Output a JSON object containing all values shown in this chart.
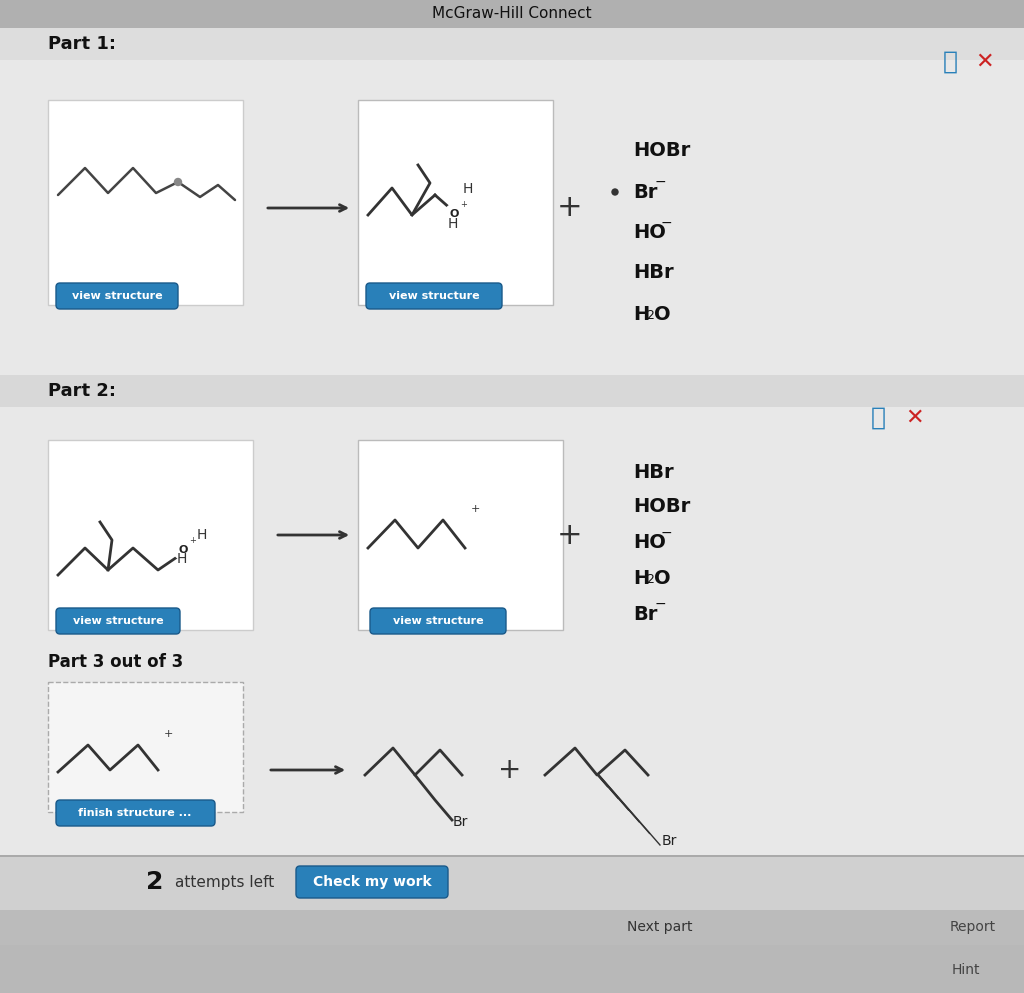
{
  "title": "McGraw-Hill Connect",
  "header_bg": "#b0b0b0",
  "content_bg": "#e8e8e8",
  "white_bg": "#ffffff",
  "blue_btn": "#2980b9",
  "part1_label": "Part 1:",
  "part2_label": "Part 2:",
  "part3_label": "Part 3 out of 3",
  "part1_options": [
    "HOBr",
    "Br-",
    "HO-",
    "HBr",
    "H2O"
  ],
  "part1_selected": 1,
  "part2_options": [
    "HBr",
    "HOBr",
    "HO-",
    "H2O",
    "Br-"
  ],
  "bottom_text": "attempts left",
  "btn_check": "Check my work",
  "btn_next": "Next part",
  "btn_report": "Report",
  "btn_hint": "Hint",
  "dark_bar": "#2a2a2a",
  "part2_strip_bg": "#d8d8d8",
  "dashed_box_bg": "#f5f5f5"
}
